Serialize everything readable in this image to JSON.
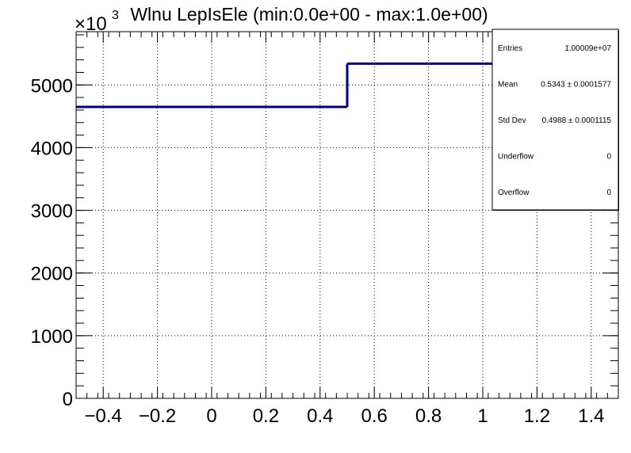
{
  "chart_data": {
    "type": "bar",
    "title": "Wlnu LepIsEle (min:0.0e+00 - max:1.0e+00)",
    "xlim": [
      -0.5,
      1.5
    ],
    "ylim": [
      0,
      5850
    ],
    "y_multiplier_label": "×10",
    "y_multiplier_exponent": "3",
    "grid": true,
    "bins": [
      {
        "x_low": -0.5,
        "x_high": 0.5,
        "value": 4650
      },
      {
        "x_low": 0.5,
        "x_high": 1.5,
        "value": 5340
      }
    ],
    "x_ticks": [
      {
        "value": -0.4,
        "label": "−0.4"
      },
      {
        "value": -0.2,
        "label": "−0.2"
      },
      {
        "value": 0,
        "label": "0"
      },
      {
        "value": 0.2,
        "label": "0.2"
      },
      {
        "value": 0.4,
        "label": "0.4"
      },
      {
        "value": 0.6,
        "label": "0.6"
      },
      {
        "value": 0.8,
        "label": "0.8"
      },
      {
        "value": 1,
        "label": "1"
      },
      {
        "value": 1.2,
        "label": "1.2"
      },
      {
        "value": 1.4,
        "label": "1.4"
      }
    ],
    "y_ticks": [
      {
        "value": 0,
        "label": "0"
      },
      {
        "value": 1000,
        "label": "1000"
      },
      {
        "value": 2000,
        "label": "2000"
      },
      {
        "value": 3000,
        "label": "3000"
      },
      {
        "value": 4000,
        "label": "4000"
      },
      {
        "value": 5000,
        "label": "5000"
      }
    ],
    "line_color": "#000080",
    "legend_placement": "top-right",
    "stats": [
      {
        "label": "Entries",
        "value": "1.00009e+07"
      },
      {
        "label": "Mean",
        "value": "0.5343 ± 0.0001577"
      },
      {
        "label": "Std Dev",
        "value": "0.4988 ± 0.0001115"
      },
      {
        "label": "Underflow",
        "value": "0"
      },
      {
        "label": "Overflow",
        "value": "0"
      }
    ]
  }
}
